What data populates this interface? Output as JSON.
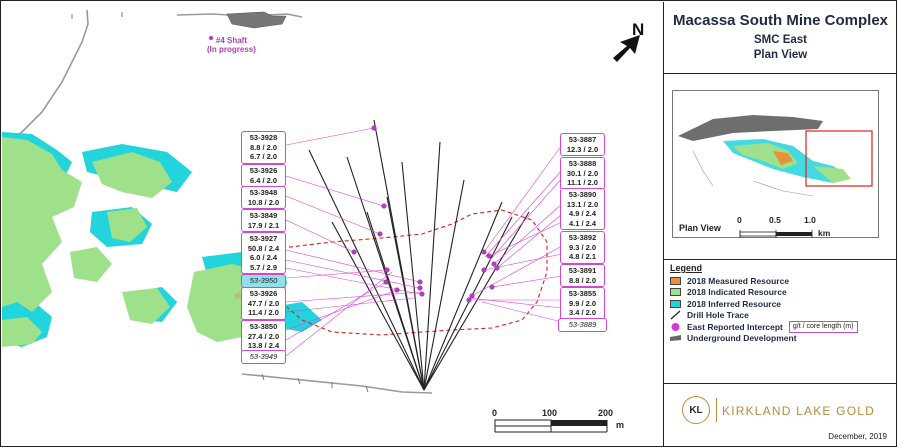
{
  "title": {
    "main": "Macassa South Mine Complex",
    "sub": "SMC East",
    "view": "Plan View"
  },
  "map": {
    "shaft_label_line1": "#4 Shaft",
    "shaft_label_line2": "(In progress)",
    "north_label": "N",
    "scale_ticks": [
      "0",
      "100",
      "200"
    ],
    "scale_unit": "m"
  },
  "inset": {
    "label": "Plan View",
    "scale_ticks": [
      "0",
      "0.5",
      "1.0"
    ],
    "scale_unit": "km"
  },
  "legend": {
    "title": "Legend",
    "items": [
      {
        "label": "2018 Measured Resource",
        "color": "#e8913a"
      },
      {
        "label": "2018 Indicated Resource",
        "color": "#9fe08a"
      },
      {
        "label": "2018 Inferred Resource",
        "color": "#22d4dc"
      },
      {
        "label": "Drill Hole Trace"
      },
      {
        "label": "East Reported Intercept",
        "color": "#d23cd2"
      },
      {
        "label": "Underground Development",
        "color": "#666666"
      }
    ],
    "gt_note": "g/t / core length (m)"
  },
  "logo": {
    "mark": "KL",
    "text": "KIRKLAND LAKE GOLD",
    "date": "December, 2019"
  },
  "callouts_left": [
    {
      "hole": "53-3928",
      "intercepts": [
        "8.8 / 2.0",
        "6.7 / 2.0"
      ]
    },
    {
      "hole": "53-3926",
      "intercepts": [
        "6.4 / 2.0"
      ]
    },
    {
      "hole": "53-3948",
      "intercepts": [
        "10.8 / 2.0"
      ]
    },
    {
      "hole": "53-3849",
      "intercepts": [
        "17.9 / 2.1"
      ]
    },
    {
      "hole": "53-3927",
      "intercepts": [
        "50.8 / 2.4",
        "6.0 / 2.4",
        "5.7 / 2.9"
      ]
    },
    {
      "hole": "53-3950",
      "intercepts": []
    },
    {
      "hole": "53-3926",
      "intercepts": [
        "47.7 / 2.0",
        "11.4 / 2.0"
      ]
    },
    {
      "hole": "53-3850",
      "intercepts": [
        "27.4 / 2.0",
        "13.8 / 2.4"
      ]
    },
    {
      "hole": "53-3949",
      "intercepts": []
    }
  ],
  "callouts_right": [
    {
      "hole": "53-3887",
      "intercepts": [
        "12.3 / 2.0"
      ]
    },
    {
      "hole": "53-3888",
      "intercepts": [
        "30.1 / 2.0",
        "11.1 / 2.0"
      ]
    },
    {
      "hole": "53-3890",
      "intercepts": [
        "13.1 / 2.0",
        "4.9 / 2.4",
        "4.1 / 2.4"
      ]
    },
    {
      "hole": "53-3892",
      "intercepts": [
        "9.3 / 2.0",
        "4.8 / 2.1"
      ]
    },
    {
      "hole": "53-3891",
      "intercepts": [
        "8.8 / 2.0"
      ]
    },
    {
      "hole": "53-3855",
      "intercepts": [
        "9.9 / 2.0",
        "3.4 / 2.0"
      ]
    },
    {
      "hole": "53-3889",
      "intercepts": []
    }
  ]
}
